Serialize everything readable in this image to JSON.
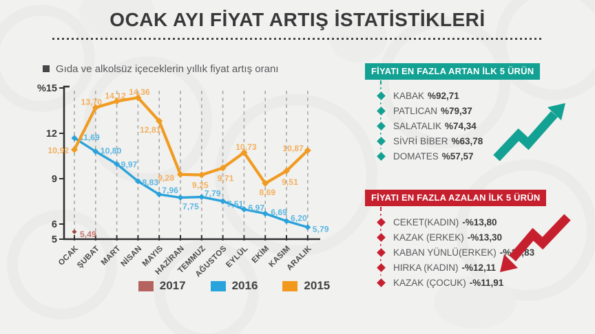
{
  "title": "OCAK AYI FİYAT ARTIŞ İSTATİSTİKLERİ",
  "chart_data": {
    "type": "line",
    "title": "Gıda ve alkolsüz içeceklerin yıllık fiyat artış oranı",
    "unit": "%",
    "categories": [
      "OCAK",
      "ŞUBAT",
      "MART",
      "NİSAN",
      "MAYIS",
      "HAZİRAN",
      "TEMMUZ",
      "AĞUSTOS",
      "EYLÜL",
      "EKİM",
      "KASIM",
      "ARALIK"
    ],
    "series": [
      {
        "name": "2016",
        "color": "#2aa2da",
        "label_color": "#5cb6e2",
        "values": [
          11.69,
          10.8,
          9.97,
          8.83,
          7.96,
          7.75,
          7.79,
          7.51,
          6.97,
          6.69,
          6.2,
          5.79
        ],
        "value_labels": [
          "11,69",
          "10,80",
          "9,97",
          "8,83",
          "7,96",
          "7,75",
          "7,79",
          "7,51",
          "6,97",
          "6,69",
          "6,20",
          "5,79"
        ]
      },
      {
        "name": "2015",
        "color": "#f09b22",
        "label_color": "#f3b061",
        "values": [
          10.92,
          13.7,
          14.12,
          14.36,
          12.81,
          9.28,
          9.25,
          9.71,
          10.73,
          8.69,
          9.51,
          10.87
        ],
        "value_labels": [
          "10,92",
          "13,70",
          "14,12",
          "14,36",
          "12,81",
          "9,28",
          "9,25",
          "9,71",
          "10,73",
          "8,69",
          "9,51",
          "10,87"
        ]
      },
      {
        "name": "2017",
        "color": "#9c4a40",
        "label_color": "#c2766d",
        "values": [
          5.49
        ],
        "value_labels": [
          "5,49"
        ]
      }
    ],
    "ylim": [
      5,
      15
    ],
    "yticks": [
      5,
      6,
      9,
      12,
      15
    ],
    "ytick_labels": [
      "5",
      "6",
      "9",
      "12",
      "%15"
    ],
    "grid": "vertical-dashed",
    "legend_position": "bottom"
  },
  "legend": [
    {
      "label": "2017",
      "color": "#b4635e"
    },
    {
      "label": "2016",
      "color": "#29a3dc"
    },
    {
      "label": "2015",
      "color": "#f2991d"
    }
  ],
  "panels": {
    "gainers": {
      "header": "FİYATI EN FAZLA ARTAN İLK 5 ÜRÜN",
      "accent": "#12a192",
      "items": [
        {
          "name": "KABAK",
          "value": "%92,71"
        },
        {
          "name": "PATLICAN",
          "value": "%79,37"
        },
        {
          "name": "SALATALIK",
          "value": "%74,34"
        },
        {
          "name": "SİVRİ BİBER",
          "value": "%63,78"
        },
        {
          "name": "DOMATES",
          "value": "%57,57"
        }
      ]
    },
    "losers": {
      "header": "FİYATI EN FAZLA AZALAN İLK 5 ÜRÜN",
      "accent": "#c6202f",
      "items": [
        {
          "name": "CEKET(KADIN)",
          "value": "-%13,80"
        },
        {
          "name": "KAZAK (ERKEK)",
          "value": "-%13,30"
        },
        {
          "name": "KABAN YÜNLÜ(ERKEK)",
          "value": "-%12,83"
        },
        {
          "name": "HIRKA (KADIN)",
          "value": "-%12,11"
        },
        {
          "name": "KAZAK (ÇOCUK)",
          "value": "-%11,91"
        }
      ]
    }
  }
}
